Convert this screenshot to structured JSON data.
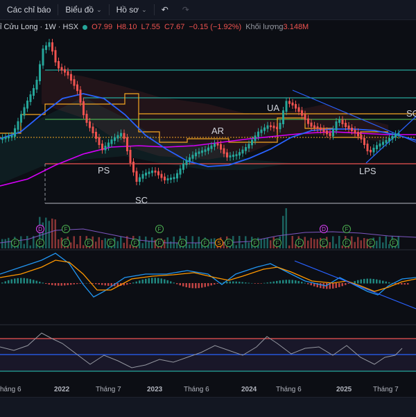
{
  "toolbar": {
    "indicators_label": "Các chỉ báo",
    "chart_type_label": "Biểu đồ",
    "profile_label": "Hồ sơ"
  },
  "legend": {
    "symbol": "ỉ Cửu Long · 1W · HSX",
    "open": "O7.99",
    "high": "H8.10",
    "low": "L7.55",
    "close": "C7.67",
    "change": "−0.15 (−1.92%)",
    "volume_label": "Khối lượng",
    "volume_value": "3.148M"
  },
  "annotations": [
    "UA",
    "AR",
    "PS",
    "SC",
    "LPS",
    "SO"
  ],
  "x_axis": [
    "háng 6",
    "2022",
    "Tháng 7",
    "2023",
    "Tháng 6",
    "2024",
    "Tháng 6",
    "2025",
    "Tháng 7"
  ],
  "colors": {
    "up": "#26a69a",
    "down": "#ef5350",
    "teal_line": "#26a69a",
    "blue_line": "#2962ff",
    "magenta_line": "#e040fb",
    "orange_line": "#f5a623"
  }
}
